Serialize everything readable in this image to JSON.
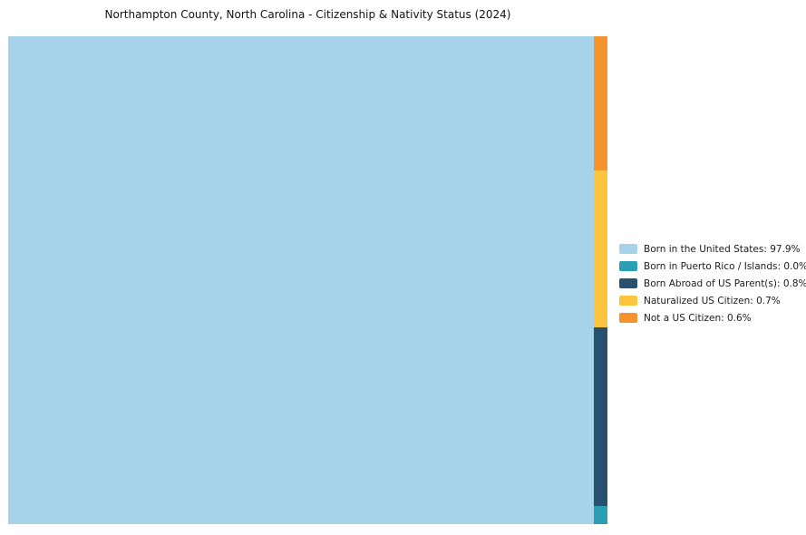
{
  "chart_data": {
    "type": "treemap",
    "title": "Northampton County, North Carolina - Citizenship & Nativity Status (2024)",
    "categories": [
      "Born in the United States",
      "Born in Puerto Rico / Islands",
      "Born Abroad of US Parent(s)",
      "Naturalized US Citizen",
      "Not a US Citizen"
    ],
    "values": [
      97.9,
      0.0,
      0.8,
      0.7,
      0.6
    ],
    "unit": "%",
    "colors": [
      "#a6d3e9",
      "#2b9fb3",
      "#27516f",
      "#fdc53d",
      "#f5932c"
    ],
    "legend_position": "right",
    "strip_order_top_to_bottom": [
      4,
      3,
      2,
      1
    ]
  },
  "legend": {
    "items": [
      {
        "label": "Born in the United States: 97.9%",
        "color": "#a6d3e9"
      },
      {
        "label": "Born in Puerto Rico / Islands: 0.0%",
        "color": "#2b9fb3"
      },
      {
        "label": "Born Abroad of US Parent(s): 0.8%",
        "color": "#27516f"
      },
      {
        "label": "Naturalized US Citizen: 0.7%",
        "color": "#fdc53d"
      },
      {
        "label": "Not a US Citizen: 0.6%",
        "color": "#f5932c"
      }
    ]
  }
}
